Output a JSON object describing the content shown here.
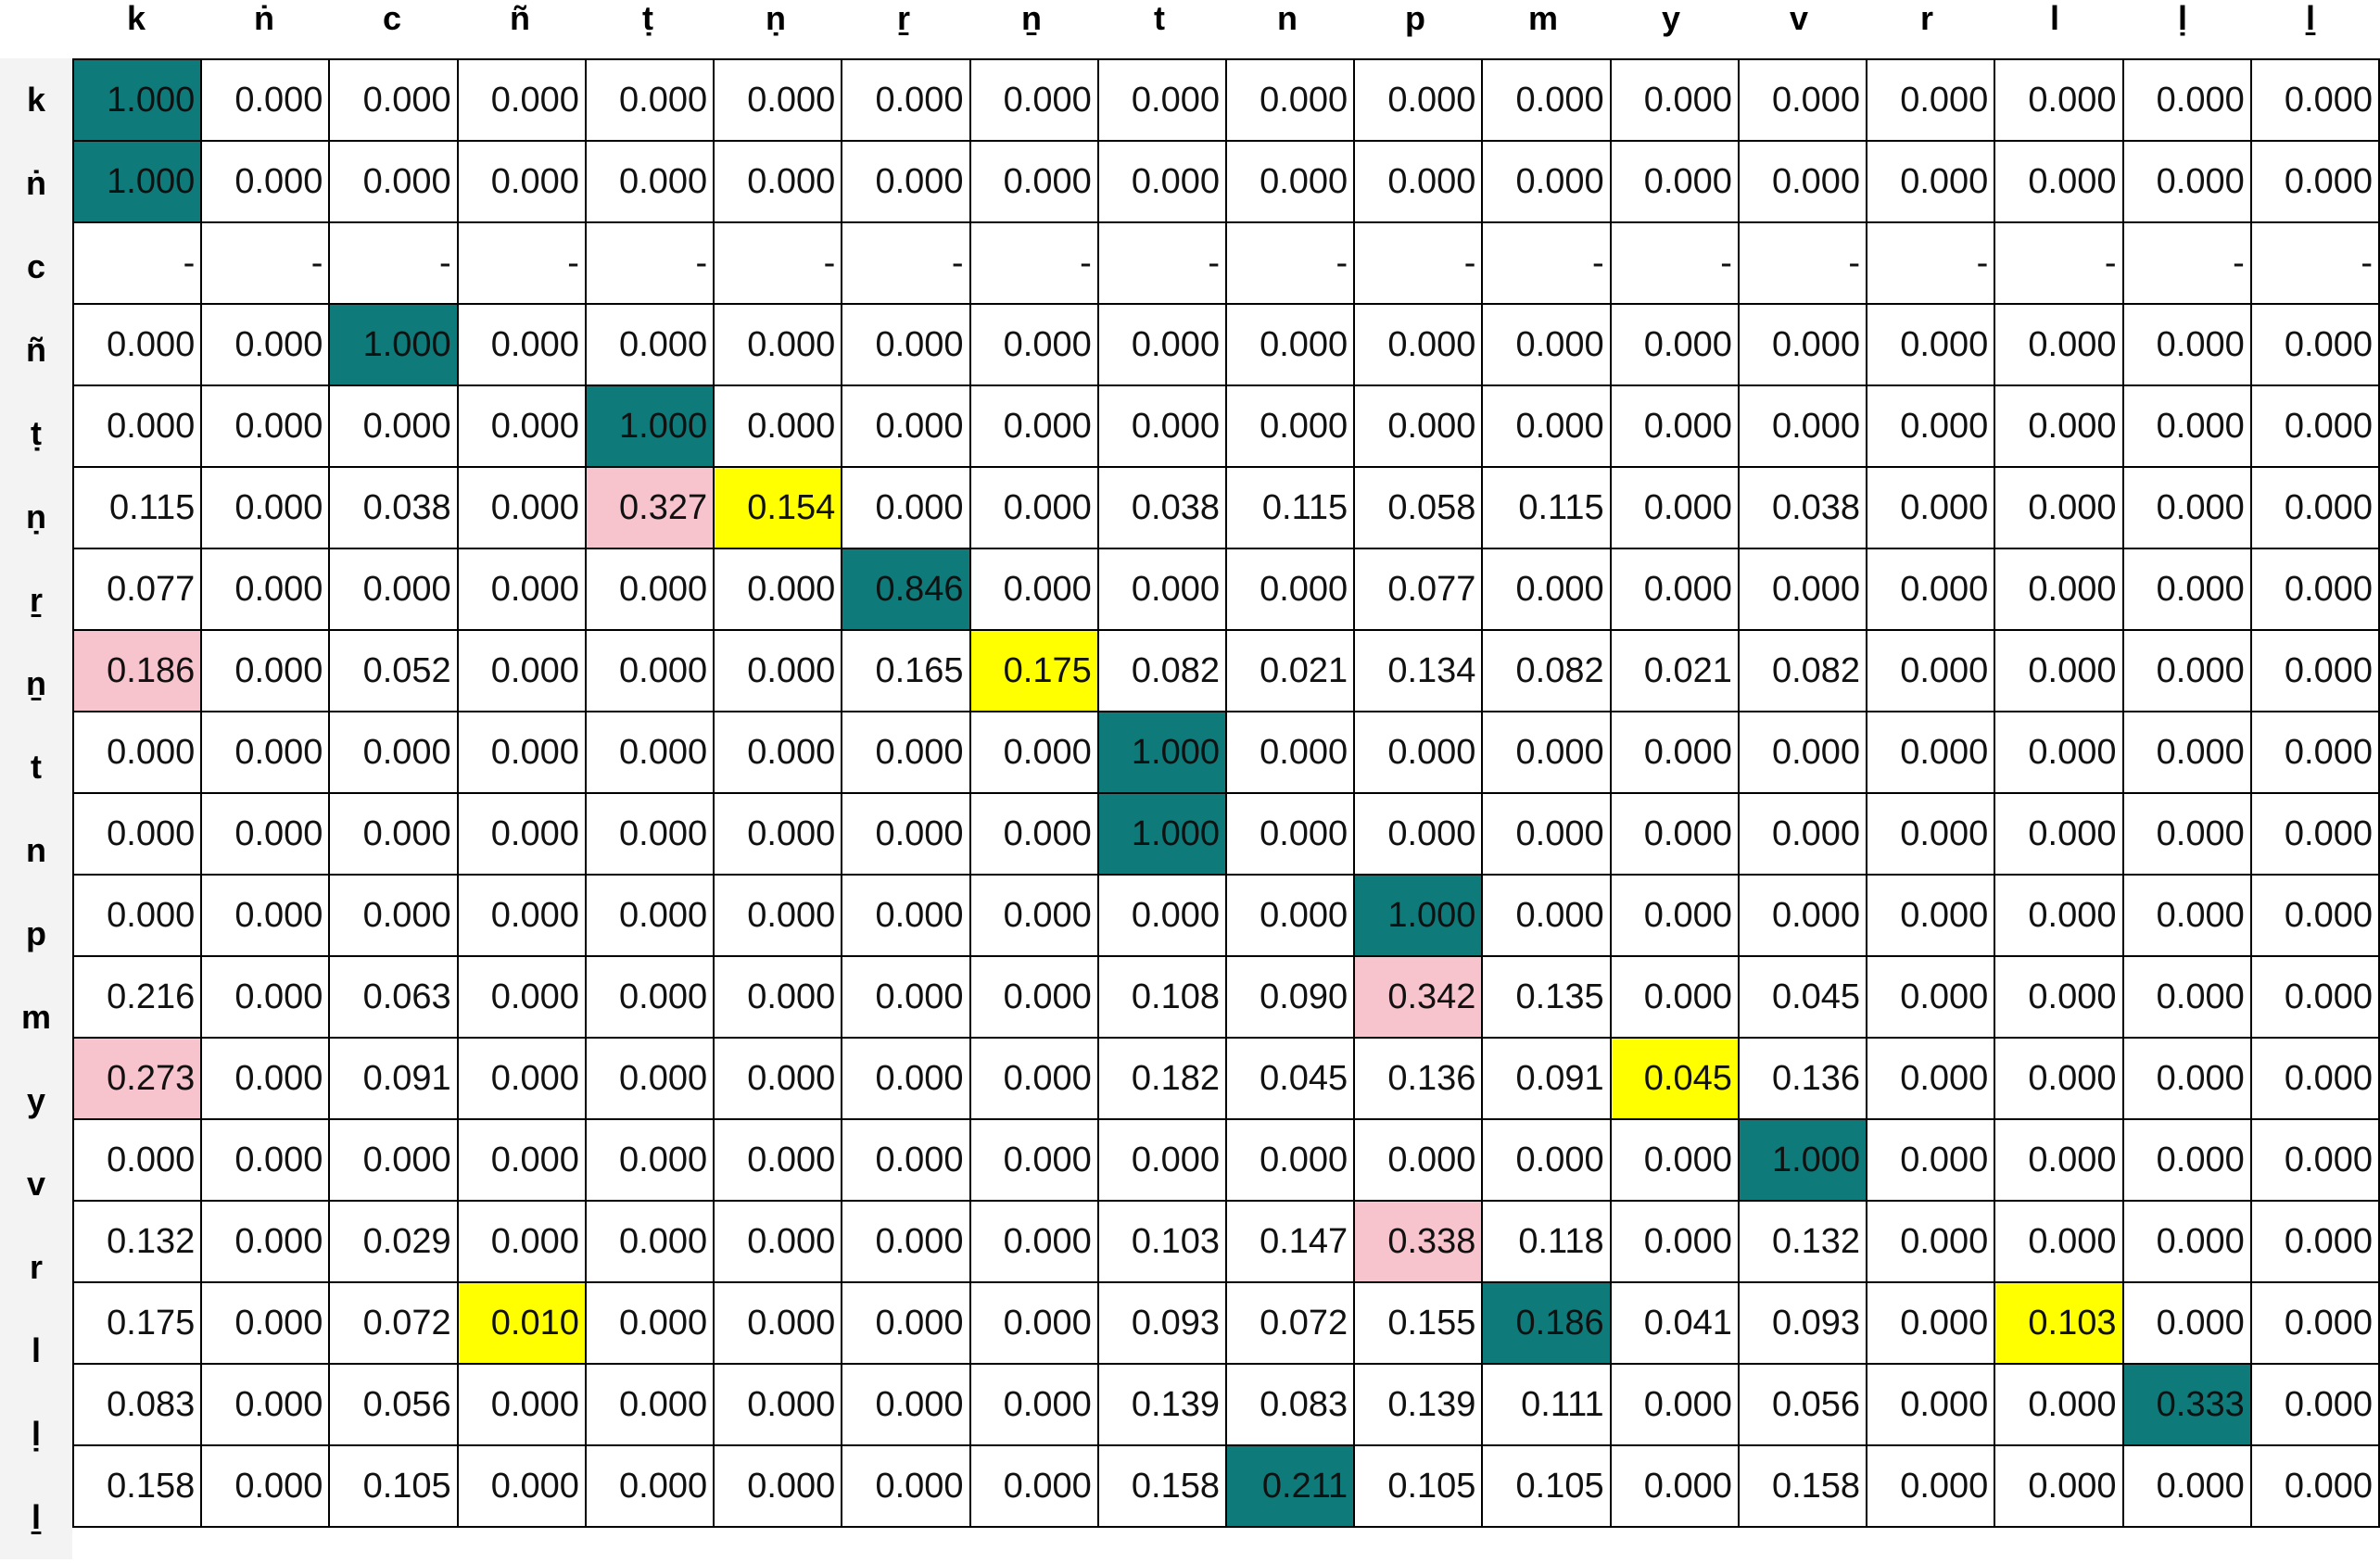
{
  "columns": [
    "k",
    "ṅ",
    "c",
    "ñ",
    "ṭ",
    "ṇ",
    "ṟ",
    "ṉ",
    "t",
    "n",
    "p",
    "m",
    "y",
    "v",
    "r",
    "l",
    "ḷ",
    "ḻ"
  ],
  "rows": [
    {
      "label": "k",
      "values": [
        "1.000",
        "0.000",
        "0.000",
        "0.000",
        "0.000",
        "0.000",
        "0.000",
        "0.000",
        "0.000",
        "0.000",
        "0.000",
        "0.000",
        "0.000",
        "0.000",
        "0.000",
        "0.000",
        "0.000",
        "0.000"
      ]
    },
    {
      "label": "ṅ",
      "values": [
        "1.000",
        "0.000",
        "0.000",
        "0.000",
        "0.000",
        "0.000",
        "0.000",
        "0.000",
        "0.000",
        "0.000",
        "0.000",
        "0.000",
        "0.000",
        "0.000",
        "0.000",
        "0.000",
        "0.000",
        "0.000"
      ]
    },
    {
      "label": "c",
      "values": [
        "-",
        "-",
        "-",
        "-",
        "-",
        "-",
        "-",
        "-",
        "-",
        "-",
        "-",
        "-",
        "-",
        "-",
        "-",
        "-",
        "-",
        "-"
      ]
    },
    {
      "label": "ñ",
      "values": [
        "0.000",
        "0.000",
        "1.000",
        "0.000",
        "0.000",
        "0.000",
        "0.000",
        "0.000",
        "0.000",
        "0.000",
        "0.000",
        "0.000",
        "0.000",
        "0.000",
        "0.000",
        "0.000",
        "0.000",
        "0.000"
      ]
    },
    {
      "label": "ṭ",
      "values": [
        "0.000",
        "0.000",
        "0.000",
        "0.000",
        "1.000",
        "0.000",
        "0.000",
        "0.000",
        "0.000",
        "0.000",
        "0.000",
        "0.000",
        "0.000",
        "0.000",
        "0.000",
        "0.000",
        "0.000",
        "0.000"
      ]
    },
    {
      "label": "ṇ",
      "values": [
        "0.115",
        "0.000",
        "0.038",
        "0.000",
        "0.327",
        "0.154",
        "0.000",
        "0.000",
        "0.038",
        "0.115",
        "0.058",
        "0.115",
        "0.000",
        "0.038",
        "0.000",
        "0.000",
        "0.000",
        "0.000"
      ]
    },
    {
      "label": "ṟ",
      "values": [
        "0.077",
        "0.000",
        "0.000",
        "0.000",
        "0.000",
        "0.000",
        "0.846",
        "0.000",
        "0.000",
        "0.000",
        "0.077",
        "0.000",
        "0.000",
        "0.000",
        "0.000",
        "0.000",
        "0.000",
        "0.000"
      ]
    },
    {
      "label": "ṉ",
      "values": [
        "0.186",
        "0.000",
        "0.052",
        "0.000",
        "0.000",
        "0.000",
        "0.165",
        "0.175",
        "0.082",
        "0.021",
        "0.134",
        "0.082",
        "0.021",
        "0.082",
        "0.000",
        "0.000",
        "0.000",
        "0.000"
      ]
    },
    {
      "label": "t",
      "values": [
        "0.000",
        "0.000",
        "0.000",
        "0.000",
        "0.000",
        "0.000",
        "0.000",
        "0.000",
        "1.000",
        "0.000",
        "0.000",
        "0.000",
        "0.000",
        "0.000",
        "0.000",
        "0.000",
        "0.000",
        "0.000"
      ]
    },
    {
      "label": "n",
      "values": [
        "0.000",
        "0.000",
        "0.000",
        "0.000",
        "0.000",
        "0.000",
        "0.000",
        "0.000",
        "1.000",
        "0.000",
        "0.000",
        "0.000",
        "0.000",
        "0.000",
        "0.000",
        "0.000",
        "0.000",
        "0.000"
      ]
    },
    {
      "label": "p",
      "values": [
        "0.000",
        "0.000",
        "0.000",
        "0.000",
        "0.000",
        "0.000",
        "0.000",
        "0.000",
        "0.000",
        "0.000",
        "1.000",
        "0.000",
        "0.000",
        "0.000",
        "0.000",
        "0.000",
        "0.000",
        "0.000"
      ]
    },
    {
      "label": "m",
      "values": [
        "0.216",
        "0.000",
        "0.063",
        "0.000",
        "0.000",
        "0.000",
        "0.000",
        "0.000",
        "0.108",
        "0.090",
        "0.342",
        "0.135",
        "0.000",
        "0.045",
        "0.000",
        "0.000",
        "0.000",
        "0.000"
      ]
    },
    {
      "label": "y",
      "values": [
        "0.273",
        "0.000",
        "0.091",
        "0.000",
        "0.000",
        "0.000",
        "0.000",
        "0.000",
        "0.182",
        "0.045",
        "0.136",
        "0.091",
        "0.045",
        "0.136",
        "0.000",
        "0.000",
        "0.000",
        "0.000"
      ]
    },
    {
      "label": "v",
      "values": [
        "0.000",
        "0.000",
        "0.000",
        "0.000",
        "0.000",
        "0.000",
        "0.000",
        "0.000",
        "0.000",
        "0.000",
        "0.000",
        "0.000",
        "0.000",
        "1.000",
        "0.000",
        "0.000",
        "0.000",
        "0.000"
      ]
    },
    {
      "label": "r",
      "values": [
        "0.132",
        "0.000",
        "0.029",
        "0.000",
        "0.000",
        "0.000",
        "0.000",
        "0.000",
        "0.103",
        "0.147",
        "0.338",
        "0.118",
        "0.000",
        "0.132",
        "0.000",
        "0.000",
        "0.000",
        "0.000"
      ]
    },
    {
      "label": "l",
      "values": [
        "0.175",
        "0.000",
        "0.072",
        "0.010",
        "0.000",
        "0.000",
        "0.000",
        "0.000",
        "0.093",
        "0.072",
        "0.155",
        "0.186",
        "0.041",
        "0.093",
        "0.000",
        "0.103",
        "0.000",
        "0.000"
      ]
    },
    {
      "label": "ḷ",
      "values": [
        "0.083",
        "0.000",
        "0.056",
        "0.000",
        "0.000",
        "0.000",
        "0.000",
        "0.000",
        "0.139",
        "0.083",
        "0.139",
        "0.111",
        "0.000",
        "0.056",
        "0.000",
        "0.000",
        "0.333",
        "0.000"
      ]
    },
    {
      "label": "ḻ",
      "values": [
        "0.158",
        "0.000",
        "0.105",
        "0.000",
        "0.000",
        "0.000",
        "0.000",
        "0.000",
        "0.158",
        "0.211",
        "0.105",
        "0.105",
        "0.000",
        "0.158",
        "0.000",
        "0.000",
        "0.000",
        "0.000"
      ]
    }
  ],
  "highlights": [
    {
      "row": 0,
      "col": 0,
      "kind": "teal"
    },
    {
      "row": 1,
      "col": 0,
      "kind": "teal"
    },
    {
      "row": 3,
      "col": 2,
      "kind": "teal"
    },
    {
      "row": 4,
      "col": 4,
      "kind": "teal"
    },
    {
      "row": 5,
      "col": 4,
      "kind": "pink"
    },
    {
      "row": 5,
      "col": 5,
      "kind": "yellow"
    },
    {
      "row": 6,
      "col": 6,
      "kind": "teal"
    },
    {
      "row": 7,
      "col": 0,
      "kind": "pink"
    },
    {
      "row": 7,
      "col": 7,
      "kind": "yellow"
    },
    {
      "row": 8,
      "col": 8,
      "kind": "teal"
    },
    {
      "row": 9,
      "col": 8,
      "kind": "teal"
    },
    {
      "row": 10,
      "col": 10,
      "kind": "teal"
    },
    {
      "row": 11,
      "col": 10,
      "kind": "pink"
    },
    {
      "row": 12,
      "col": 0,
      "kind": "pink"
    },
    {
      "row": 12,
      "col": 12,
      "kind": "yellow"
    },
    {
      "row": 13,
      "col": 13,
      "kind": "teal"
    },
    {
      "row": 14,
      "col": 10,
      "kind": "pink"
    },
    {
      "row": 15,
      "col": 3,
      "kind": "yellow"
    },
    {
      "row": 15,
      "col": 11,
      "kind": "teal"
    },
    {
      "row": 15,
      "col": 15,
      "kind": "yellow"
    },
    {
      "row": 16,
      "col": 16,
      "kind": "teal"
    },
    {
      "row": 17,
      "col": 9,
      "kind": "teal"
    }
  ],
  "colors": {
    "teal": "#0e7a7a",
    "pink": "#f7c3cd",
    "yellow": "#ffff00",
    "grid_line": "#000000",
    "row_header_bg": "#f3f3f3"
  }
}
